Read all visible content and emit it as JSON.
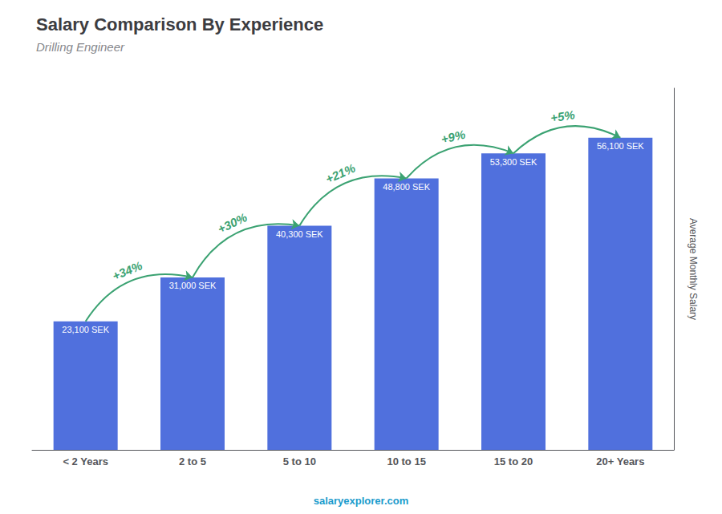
{
  "chart_data": {
    "type": "bar",
    "title": "Salary Comparison By Experience",
    "subtitle": "Drilling Engineer",
    "categories": [
      "< 2 Years",
      "2 to 5",
      "5 to 10",
      "10 to 15",
      "15 to 20",
      "20+ Years"
    ],
    "values": [
      23100,
      31000,
      40300,
      48800,
      53300,
      56100
    ],
    "value_labels": [
      "23,100 SEK",
      "31,000 SEK",
      "40,300 SEK",
      "48,800 SEK",
      "53,300 SEK",
      "56,100 SEK"
    ],
    "data_labels": true,
    "ylabel": "Average Monthly Salary",
    "ylim": [
      0,
      65000
    ],
    "tick_labels": "x",
    "grid": false,
    "annotations": [
      {
        "text": "+34%",
        "from": "< 2 Years",
        "to": "2 to 5"
      },
      {
        "text": "+30%",
        "from": "2 to 5",
        "to": "5 to 10"
      },
      {
        "text": "+21%",
        "from": "5 to 10",
        "to": "10 to 15"
      },
      {
        "text": "+9%",
        "from": "10 to 15",
        "to": "15 to 20"
      },
      {
        "text": "+5%",
        "from": "15 to 20",
        "to": "20+ Years"
      },
      {
        "text": "salaryexplorer.com"
      }
    ]
  }
}
